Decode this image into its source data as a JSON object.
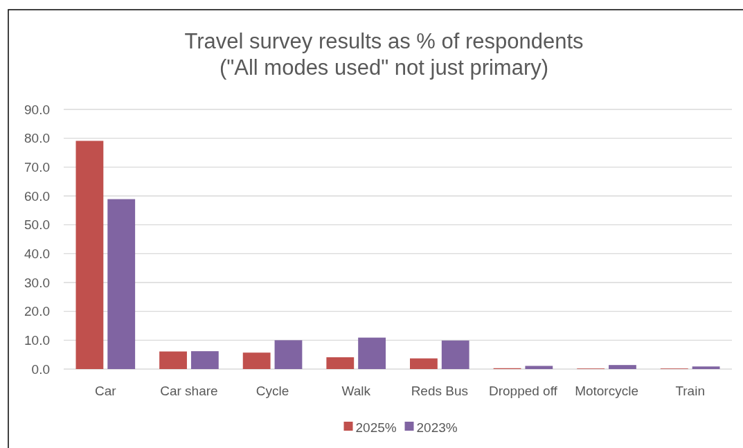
{
  "chart_data": {
    "type": "bar",
    "title": "Travel survey results as % of respondents\n(\"All modes used\" not just primary)",
    "categories": [
      "Car",
      "Car share",
      "Cycle",
      "Walk",
      "Reds Bus",
      "Dropped off",
      "Motorcycle",
      "Train"
    ],
    "series": [
      {
        "name": "2025%",
        "color": "#c0504d",
        "values": [
          79.1,
          6.1,
          5.7,
          4.1,
          3.7,
          0.3,
          0.2,
          0.2
        ]
      },
      {
        "name": "2023%",
        "color": "#8064a2",
        "values": [
          58.9,
          6.2,
          10.0,
          10.9,
          9.9,
          1.1,
          1.4,
          0.9
        ]
      }
    ],
    "ylim": [
      0,
      90
    ],
    "yticks": [
      {
        "value": 0,
        "label": "0.0"
      },
      {
        "value": 10,
        "label": "10.0"
      },
      {
        "value": 20,
        "label": "20.0"
      },
      {
        "value": 30,
        "label": "30.0"
      },
      {
        "value": 40,
        "label": "40.0"
      },
      {
        "value": 50,
        "label": "50.0"
      },
      {
        "value": 60,
        "label": "60.0"
      },
      {
        "value": 70,
        "label": "70.0"
      },
      {
        "value": 80,
        "label": "80.0"
      },
      {
        "value": 90,
        "label": "90.0"
      }
    ],
    "grid": "y",
    "legend": "bottom"
  }
}
